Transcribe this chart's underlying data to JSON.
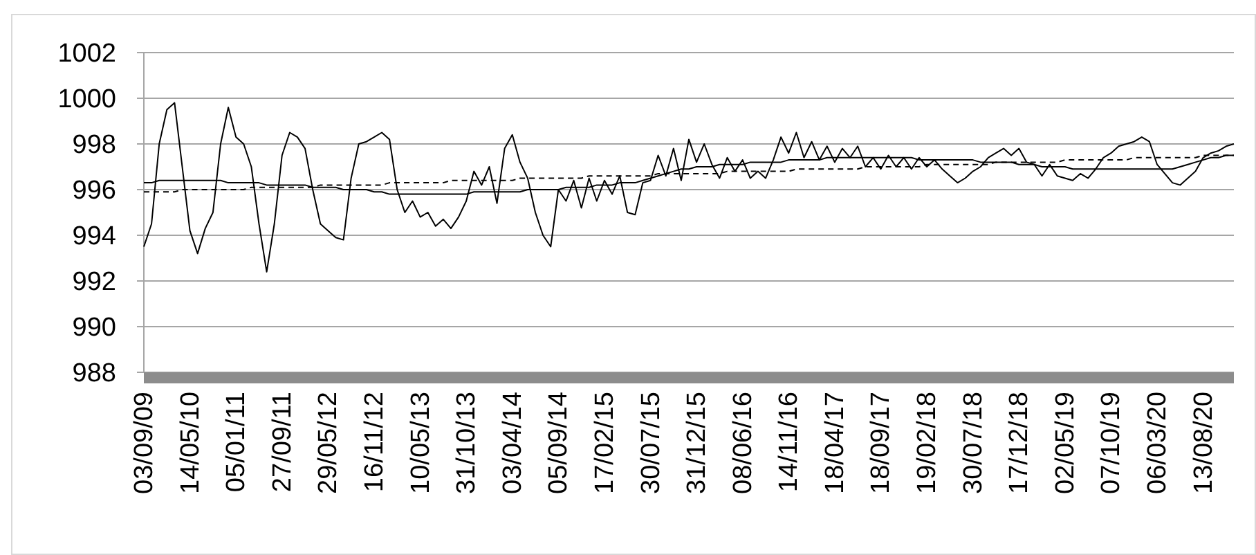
{
  "chart_data": {
    "type": "line",
    "categories": [
      "03/09/09",
      null,
      null,
      null,
      null,
      null,
      "14/05/10",
      null,
      null,
      null,
      null,
      null,
      "05/01/11",
      null,
      null,
      null,
      null,
      null,
      "27/09/11",
      null,
      null,
      null,
      null,
      null,
      "29/05/12",
      null,
      null,
      null,
      null,
      null,
      "16/11/12",
      null,
      null,
      null,
      null,
      null,
      "10/05/13",
      null,
      null,
      null,
      null,
      null,
      "31/10/13",
      null,
      null,
      null,
      null,
      null,
      "03/04/14",
      null,
      null,
      null,
      null,
      null,
      "05/09/14",
      null,
      null,
      null,
      null,
      null,
      "17/02/15",
      null,
      null,
      null,
      null,
      null,
      "30/07/15",
      null,
      null,
      null,
      null,
      null,
      "31/12/15",
      null,
      null,
      null,
      null,
      null,
      "08/06/16",
      null,
      null,
      null,
      null,
      null,
      "14/11/16",
      null,
      null,
      null,
      null,
      null,
      "18/04/17",
      null,
      null,
      null,
      null,
      null,
      "18/09/17",
      null,
      null,
      null,
      null,
      null,
      "19/02/18",
      null,
      null,
      null,
      null,
      null,
      "30/07/18",
      null,
      null,
      null,
      null,
      null,
      "17/12/18",
      null,
      null,
      null,
      null,
      null,
      "02/05/19",
      null,
      null,
      null,
      null,
      null,
      "07/10/19",
      null,
      null,
      null,
      null,
      null,
      "06/03/20",
      null,
      null,
      null,
      null,
      null,
      "13/08/20",
      null,
      null,
      null,
      null
    ],
    "series": [
      {
        "color": "#000000",
        "line_style": "solid",
        "values": [
          993.5,
          994.5,
          998,
          999.5,
          999.8,
          997,
          994.2,
          993.2,
          994.3,
          995,
          998,
          999.6,
          998.3,
          998,
          997,
          994.5,
          992.4,
          994.5,
          997.5,
          998.5,
          998.3,
          997.8,
          996,
          994.5,
          994.2,
          993.9,
          993.8,
          996.5,
          998,
          998.1,
          998.3,
          998.5,
          998.2,
          996,
          995,
          995.5,
          994.8,
          995,
          994.4,
          994.7,
          994.3,
          994.8,
          995.5,
          996.8,
          996.2,
          997,
          995.4,
          997.8,
          998.4,
          997.2,
          996.5,
          995,
          994,
          993.5,
          996,
          995.5,
          996.4,
          995.2,
          996.5,
          995.5,
          996.4,
          995.8,
          996.6,
          995,
          994.9,
          996.3,
          996.4,
          997.5,
          996.6,
          997.8,
          996.4,
          998.2,
          997.2,
          998,
          997.1,
          996.5,
          997.4,
          996.8,
          997.3,
          996.5,
          996.8,
          996.5,
          997.3,
          998.3,
          997.6,
          998.5,
          997.4,
          998.1,
          997.3,
          997.9,
          997.2,
          997.8,
          997.4,
          997.9,
          997,
          997.4,
          996.9,
          997.5,
          997,
          997.4,
          996.9,
          997.4,
          997,
          997.3,
          996.9,
          996.6,
          996.3,
          996.5,
          996.8,
          997,
          997.4,
          997.6,
          997.8,
          997.5,
          997.8,
          997.2,
          997.1,
          996.6,
          997.1,
          996.6,
          996.5,
          996.4,
          996.7,
          996.5,
          996.9,
          997.4,
          997.6,
          997.9,
          998,
          998.1,
          998.3,
          998.1,
          997.1,
          996.7,
          996.3,
          996.2,
          996.5,
          996.8,
          997.4,
          997.6,
          997.7,
          997.9,
          998
        ]
      },
      {
        "color": "#000000",
        "line_style": "solid",
        "values": [
          996.3,
          996.3,
          996.4,
          996.4,
          996.4,
          996.4,
          996.4,
          996.4,
          996.4,
          996.4,
          996.4,
          996.3,
          996.3,
          996.3,
          996.3,
          996.3,
          996.2,
          996.2,
          996.2,
          996.2,
          996.2,
          996.2,
          996.1,
          996.1,
          996.1,
          996.1,
          996,
          996,
          996,
          996,
          995.9,
          995.9,
          995.8,
          995.8,
          995.8,
          995.8,
          995.8,
          995.8,
          995.8,
          995.8,
          995.8,
          995.8,
          995.8,
          995.9,
          995.9,
          995.9,
          995.9,
          995.9,
          995.9,
          995.9,
          996,
          996,
          996,
          996,
          996,
          996.1,
          996.1,
          996.1,
          996.1,
          996.2,
          996.2,
          996.2,
          996.3,
          996.3,
          996.3,
          996.4,
          996.5,
          996.6,
          996.7,
          996.8,
          996.9,
          996.9,
          997,
          997,
          997,
          997.1,
          997.1,
          997.1,
          997.1,
          997.2,
          997.2,
          997.2,
          997.2,
          997.2,
          997.3,
          997.3,
          997.3,
          997.3,
          997.3,
          997.4,
          997.4,
          997.4,
          997.4,
          997.4,
          997.4,
          997.4,
          997.4,
          997.4,
          997.4,
          997.4,
          997.4,
          997.3,
          997.3,
          997.3,
          997.3,
          997.3,
          997.3,
          997.3,
          997.3,
          997.2,
          997.2,
          997.2,
          997.2,
          997.2,
          997.1,
          997.1,
          997.1,
          997,
          997,
          997,
          997,
          996.9,
          996.9,
          996.9,
          996.9,
          996.9,
          996.9,
          996.9,
          996.9,
          996.9,
          996.9,
          996.9,
          996.9,
          996.9,
          996.9,
          997,
          997.1,
          997.2,
          997.3,
          997.4,
          997.4,
          997.5,
          997.5
        ]
      },
      {
        "color": "#000000",
        "line_style": "dashed",
        "values": [
          995.9,
          995.9,
          995.9,
          995.9,
          995.9,
          996,
          996,
          996,
          996,
          996,
          996,
          996,
          996,
          996,
          996.1,
          996.1,
          996.1,
          996.1,
          996.1,
          996.1,
          996.1,
          996.1,
          996.1,
          996.2,
          996.2,
          996.2,
          996.2,
          996.2,
          996.2,
          996.2,
          996.2,
          996.2,
          996.3,
          996.3,
          996.3,
          996.3,
          996.3,
          996.3,
          996.3,
          996.3,
          996.4,
          996.4,
          996.4,
          996.4,
          996.4,
          996.4,
          996.4,
          996.4,
          996.4,
          996.5,
          996.5,
          996.5,
          996.5,
          996.5,
          996.5,
          996.5,
          996.5,
          996.5,
          996.6,
          996.6,
          996.6,
          996.6,
          996.6,
          996.6,
          996.6,
          996.6,
          996.6,
          996.7,
          996.7,
          996.7,
          996.7,
          996.7,
          996.7,
          996.7,
          996.7,
          996.7,
          996.8,
          996.8,
          996.8,
          996.8,
          996.8,
          996.8,
          996.8,
          996.8,
          996.8,
          996.9,
          996.9,
          996.9,
          996.9,
          996.9,
          996.9,
          996.9,
          996.9,
          996.9,
          997,
          997,
          997,
          997,
          997,
          997,
          997,
          997,
          997.1,
          997.1,
          997.1,
          997.1,
          997.1,
          997.1,
          997.1,
          997.1,
          997.1,
          997.2,
          997.2,
          997.2,
          997.2,
          997.2,
          997.2,
          997.2,
          997.2,
          997.2,
          997.3,
          997.3,
          997.3,
          997.3,
          997.3,
          997.3,
          997.3,
          997.3,
          997.3,
          997.4,
          997.4,
          997.4,
          997.4,
          997.4,
          997.4,
          997.4,
          997.4,
          997.4,
          997.5,
          997.5,
          997.5,
          997.5,
          997.5
        ]
      }
    ],
    "ylim": [
      988,
      1002
    ],
    "yticks": [
      988,
      990,
      992,
      994,
      996,
      998,
      1000,
      1002
    ],
    "grid": "y",
    "marker": "none"
  }
}
